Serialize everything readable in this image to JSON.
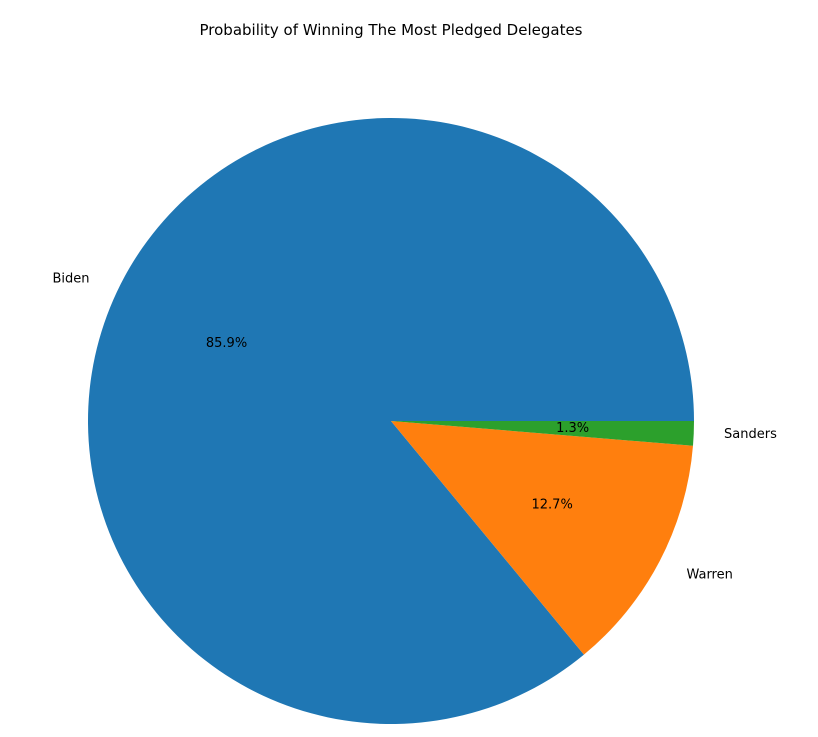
{
  "chart_data": {
    "type": "pie",
    "title": "Probability of Winning The Most Pledged Delegates",
    "slices": [
      {
        "label": "Biden",
        "value": 85.9,
        "pct_label": "85.9%",
        "color": "#1f77b4"
      },
      {
        "label": "Warren",
        "value": 12.7,
        "pct_label": "12.7%",
        "color": "#ff7f0e"
      },
      {
        "label": "Sanders",
        "value": 1.3,
        "pct_label": "1.3%",
        "color": "#2ca02c"
      }
    ],
    "start_angle": 0,
    "direction": "counterclockwise"
  }
}
